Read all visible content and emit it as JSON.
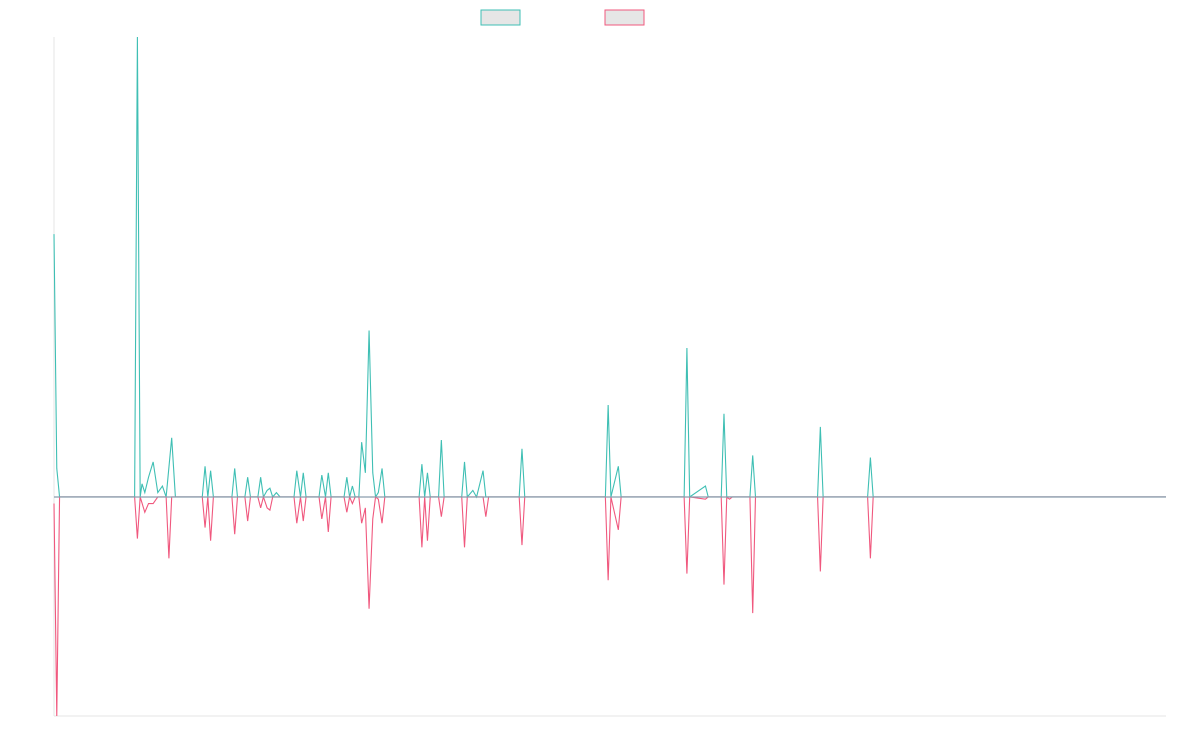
{
  "colors": {
    "series_a": "#3fbfb4",
    "series_b": "#f0587e",
    "baseline": "#8a9eae",
    "axis": "#e6e6e6",
    "legend_fill": "#e6e6e6"
  },
  "chart_data": {
    "type": "line",
    "title": "",
    "xlabel": "",
    "ylabel": "",
    "xlim": [
      0,
      120
    ],
    "ylim": [
      -1.0,
      2.1
    ],
    "grid": false,
    "legend": "top-center",
    "series": [
      {
        "points": [
          [
            0,
            1.2
          ],
          [
            0.3,
            0.13
          ],
          [
            0.6,
            0
          ],
          [
            8.7,
            0
          ],
          [
            9.0,
            2.1
          ],
          [
            9.3,
            0
          ],
          [
            9.5,
            0.06
          ],
          [
            9.8,
            0.02
          ],
          [
            10.2,
            0.09
          ],
          [
            10.7,
            0.16
          ],
          [
            11.2,
            0.02
          ],
          [
            11.7,
            0.05
          ],
          [
            12.1,
            0
          ],
          [
            12.7,
            0.27
          ],
          [
            13.1,
            0
          ],
          [
            16.0,
            0
          ],
          [
            16.3,
            0.14
          ],
          [
            16.6,
            0
          ],
          [
            16.9,
            0.12
          ],
          [
            17.2,
            0
          ],
          [
            19.2,
            0
          ],
          [
            19.5,
            0.13
          ],
          [
            19.8,
            0
          ],
          [
            20.6,
            0
          ],
          [
            20.9,
            0.09
          ],
          [
            21.2,
            0
          ],
          [
            22.0,
            0
          ],
          [
            22.3,
            0.09
          ],
          [
            22.6,
            0
          ],
          [
            23.0,
            0.03
          ],
          [
            23.3,
            0.04
          ],
          [
            23.6,
            0
          ],
          [
            24.0,
            0.02
          ],
          [
            24.4,
            0
          ],
          [
            25.9,
            0
          ],
          [
            26.2,
            0.12
          ],
          [
            26.6,
            0
          ],
          [
            26.9,
            0.11
          ],
          [
            27.2,
            0
          ],
          [
            28.6,
            0
          ],
          [
            28.9,
            0.1
          ],
          [
            29.3,
            0
          ],
          [
            29.6,
            0.11
          ],
          [
            29.9,
            0
          ],
          [
            31.3,
            0
          ],
          [
            31.6,
            0.09
          ],
          [
            31.9,
            0
          ],
          [
            32.2,
            0.05
          ],
          [
            32.5,
            0
          ],
          [
            32.9,
            0
          ],
          [
            33.2,
            0.25
          ],
          [
            33.6,
            0.11
          ],
          [
            34.0,
            0.76
          ],
          [
            34.4,
            0.11
          ],
          [
            34.7,
            0
          ],
          [
            35.0,
            0.02
          ],
          [
            35.4,
            0.13
          ],
          [
            35.7,
            0
          ],
          [
            39.4,
            0
          ],
          [
            39.7,
            0.15
          ],
          [
            40.0,
            0
          ],
          [
            40.3,
            0.11
          ],
          [
            40.6,
            0
          ],
          [
            41.5,
            0
          ],
          [
            41.8,
            0.26
          ],
          [
            42.1,
            0
          ],
          [
            44.0,
            0
          ],
          [
            44.3,
            0.16
          ],
          [
            44.6,
            0
          ],
          [
            45.2,
            0.03
          ],
          [
            45.6,
            0
          ],
          [
            46.3,
            0.12
          ],
          [
            46.6,
            0
          ],
          [
            50.2,
            0
          ],
          [
            50.5,
            0.22
          ],
          [
            50.8,
            0
          ],
          [
            59.5,
            0
          ],
          [
            59.8,
            0.42
          ],
          [
            60.1,
            0
          ],
          [
            60.9,
            0.14
          ],
          [
            61.2,
            0
          ],
          [
            68.0,
            0
          ],
          [
            68.3,
            0.68
          ],
          [
            68.6,
            0
          ],
          [
            70.3,
            0.05
          ],
          [
            70.6,
            0
          ],
          [
            72.0,
            0
          ],
          [
            72.3,
            0.38
          ],
          [
            72.6,
            0
          ],
          [
            75.1,
            0
          ],
          [
            75.4,
            0.19
          ],
          [
            75.7,
            0
          ],
          [
            82.4,
            0
          ],
          [
            82.7,
            0.32
          ],
          [
            83.0,
            0
          ],
          [
            87.8,
            0
          ],
          [
            88.1,
            0.18
          ],
          [
            88.4,
            0
          ],
          [
            120,
            0
          ]
        ]
      },
      {
        "points": [
          [
            0,
            -0.03
          ],
          [
            0.3,
            -1.0
          ],
          [
            0.6,
            0
          ],
          [
            8.7,
            0
          ],
          [
            9.0,
            -0.19
          ],
          [
            9.3,
            0
          ],
          [
            9.8,
            -0.07
          ],
          [
            10.2,
            -0.03
          ],
          [
            10.7,
            -0.03
          ],
          [
            11.2,
            0
          ],
          [
            12.1,
            0
          ],
          [
            12.4,
            -0.28
          ],
          [
            12.7,
            0
          ],
          [
            16.0,
            0
          ],
          [
            16.3,
            -0.14
          ],
          [
            16.6,
            0
          ],
          [
            16.9,
            -0.2
          ],
          [
            17.2,
            0
          ],
          [
            19.2,
            0
          ],
          [
            19.5,
            -0.17
          ],
          [
            19.8,
            0
          ],
          [
            20.6,
            0
          ],
          [
            20.9,
            -0.11
          ],
          [
            21.2,
            0
          ],
          [
            22.0,
            0
          ],
          [
            22.3,
            -0.05
          ],
          [
            22.6,
            0
          ],
          [
            23.0,
            -0.05
          ],
          [
            23.3,
            -0.06
          ],
          [
            23.6,
            0
          ],
          [
            25.9,
            0
          ],
          [
            26.2,
            -0.12
          ],
          [
            26.6,
            0
          ],
          [
            26.9,
            -0.11
          ],
          [
            27.2,
            0
          ],
          [
            28.6,
            0
          ],
          [
            28.9,
            -0.1
          ],
          [
            29.3,
            0
          ],
          [
            29.6,
            -0.16
          ],
          [
            29.9,
            0
          ],
          [
            31.3,
            0
          ],
          [
            31.6,
            -0.07
          ],
          [
            31.9,
            0
          ],
          [
            32.2,
            -0.03
          ],
          [
            32.5,
            0
          ],
          [
            32.9,
            0
          ],
          [
            33.2,
            -0.12
          ],
          [
            33.6,
            -0.05
          ],
          [
            34.0,
            -0.51
          ],
          [
            34.4,
            -0.1
          ],
          [
            34.7,
            0
          ],
          [
            35.0,
            -0.01
          ],
          [
            35.4,
            -0.12
          ],
          [
            35.7,
            0
          ],
          [
            39.4,
            0
          ],
          [
            39.7,
            -0.23
          ],
          [
            40.0,
            0
          ],
          [
            40.3,
            -0.2
          ],
          [
            40.6,
            0
          ],
          [
            41.5,
            0
          ],
          [
            41.8,
            -0.09
          ],
          [
            42.1,
            0
          ],
          [
            44.0,
            0
          ],
          [
            44.3,
            -0.23
          ],
          [
            44.6,
            0
          ],
          [
            46.3,
            0
          ],
          [
            46.6,
            -0.09
          ],
          [
            46.9,
            0
          ],
          [
            50.2,
            0
          ],
          [
            50.5,
            -0.22
          ],
          [
            50.8,
            0
          ],
          [
            59.5,
            0
          ],
          [
            59.8,
            -0.38
          ],
          [
            60.1,
            0
          ],
          [
            60.9,
            -0.15
          ],
          [
            61.2,
            0
          ],
          [
            68.0,
            0
          ],
          [
            68.3,
            -0.35
          ],
          [
            68.6,
            0
          ],
          [
            70.3,
            -0.01
          ],
          [
            70.6,
            0
          ],
          [
            72.0,
            0
          ],
          [
            72.3,
            -0.4
          ],
          [
            72.6,
            0
          ],
          [
            72.9,
            -0.01
          ],
          [
            73.2,
            0
          ],
          [
            75.1,
            0
          ],
          [
            75.4,
            -0.53
          ],
          [
            75.7,
            0
          ],
          [
            82.4,
            0
          ],
          [
            82.7,
            -0.34
          ],
          [
            83.0,
            0
          ],
          [
            87.8,
            0
          ],
          [
            88.1,
            -0.28
          ],
          [
            88.4,
            0
          ],
          [
            120,
            0
          ]
        ]
      }
    ]
  }
}
